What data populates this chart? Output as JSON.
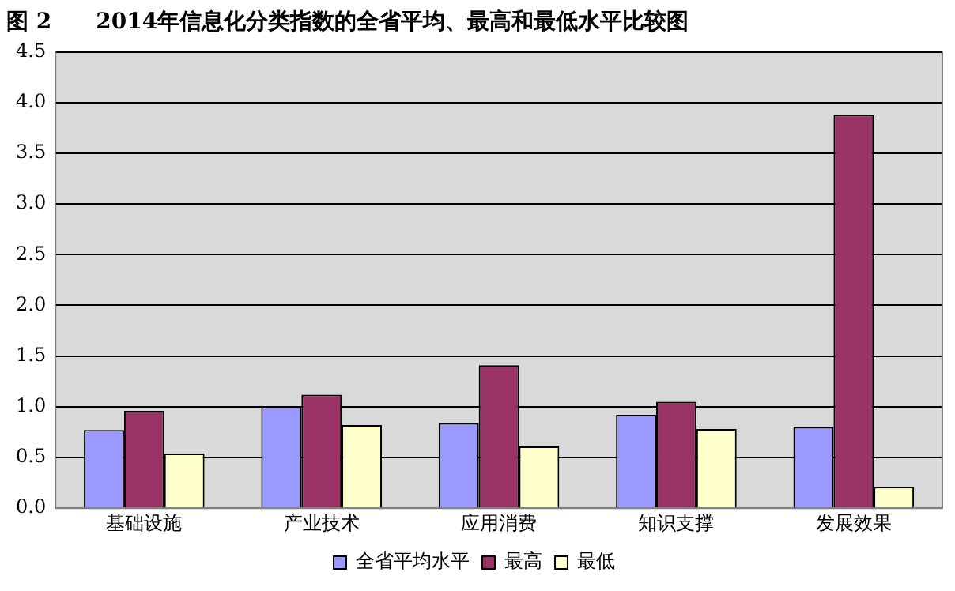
{
  "chart_data": {
    "type": "bar",
    "title": "图 2　　2014年信息化分类指数的全省平均、最高和最低水平比较图",
    "categories": [
      "基础设施",
      "产业技术",
      "应用消费",
      "知识支撑",
      "发展效果"
    ],
    "series": [
      {
        "name": "全省平均水平",
        "color": "#9999ff",
        "values": [
          0.77,
          1.0,
          0.84,
          0.92,
          0.8
        ]
      },
      {
        "name": "最高",
        "color": "#993366",
        "values": [
          0.96,
          1.12,
          1.41,
          1.05,
          3.88
        ]
      },
      {
        "name": "最低",
        "color": "#ffffcc",
        "values": [
          0.54,
          0.82,
          0.61,
          0.78,
          0.21
        ]
      }
    ],
    "ylim": [
      0,
      4.5
    ],
    "yticks": [
      {
        "value": 0,
        "label": "0.0"
      },
      {
        "value": 0.5,
        "label": "0.5"
      },
      {
        "value": 1,
        "label": "1.0"
      },
      {
        "value": 1.5,
        "label": "1.5"
      },
      {
        "value": 2,
        "label": "2.0"
      },
      {
        "value": 2.5,
        "label": "2.5"
      },
      {
        "value": 3,
        "label": "3.0"
      },
      {
        "value": 3.5,
        "label": "3.5"
      },
      {
        "value": 4,
        "label": "4.0"
      },
      {
        "value": 4.5,
        "label": "4.5"
      }
    ],
    "grid": "y",
    "legend": "bottom"
  }
}
